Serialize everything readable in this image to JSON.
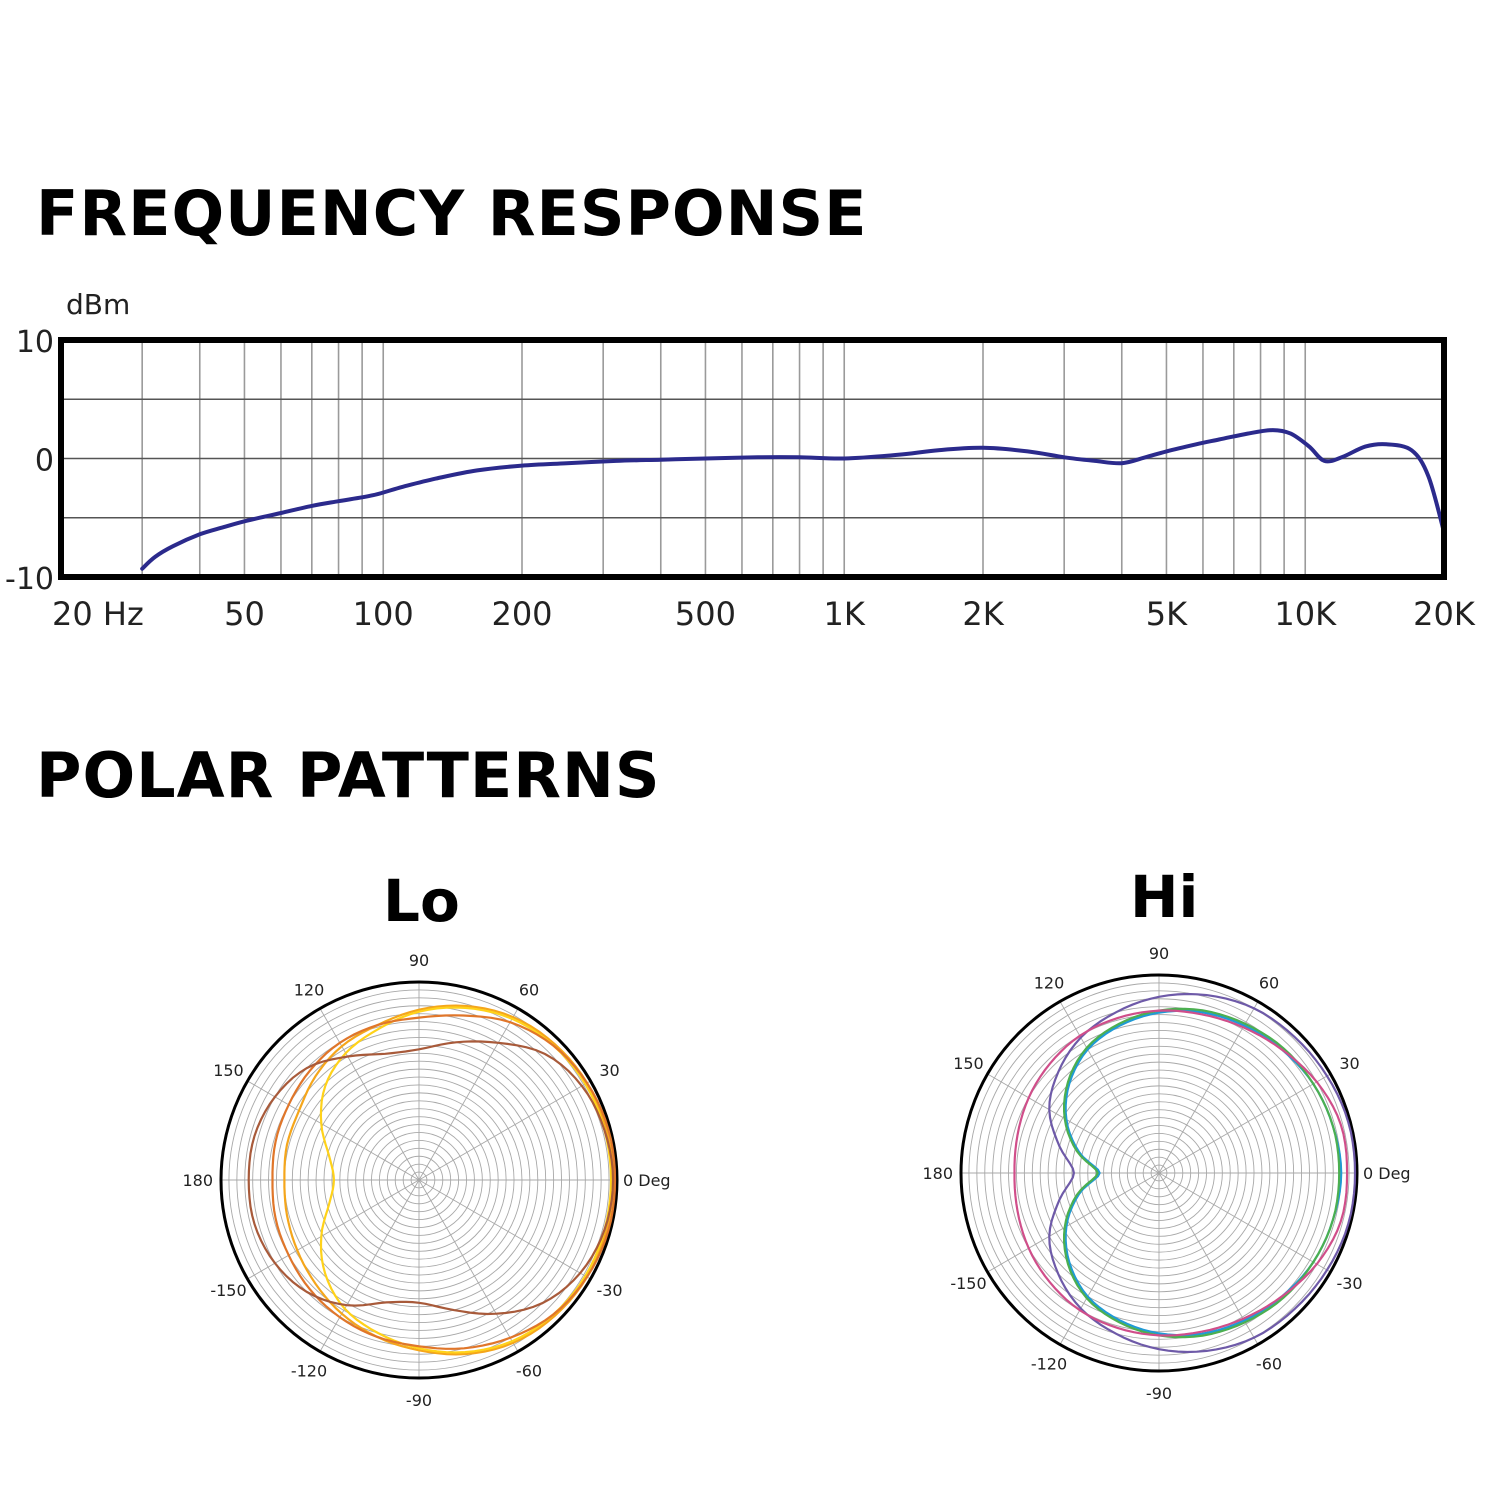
{
  "headings": {
    "frequency": "FREQUENCY RESPONSE",
    "polar": "POLAR PATTERNS"
  },
  "chart_data": [
    {
      "type": "line",
      "ylabel": "dBm",
      "x_scale": "log",
      "xlim": [
        20,
        20000
      ],
      "ylim": [
        -10,
        10
      ],
      "y_ticks": [
        10,
        0,
        -10
      ],
      "y_tick_labels": [
        "10",
        "0",
        "-10"
      ],
      "x_ticks": [
        20,
        50,
        100,
        200,
        500,
        1000,
        2000,
        5000,
        10000,
        20000
      ],
      "x_tick_labels": [
        "20  Hz",
        "50",
        "100",
        "200",
        "500",
        "1K",
        "2K",
        "5K",
        "10K",
        "20K"
      ],
      "grid": true,
      "color": "#2b2a8c",
      "series": [
        {
          "x": [
            30,
            32,
            35,
            40,
            45,
            50,
            60,
            70,
            80,
            95,
            110,
            130,
            160,
            200,
            250,
            320,
            400,
            500,
            650,
            800,
            1000,
            1300,
            1600,
            2000,
            2500,
            3000,
            3500,
            4000,
            4500,
            5000,
            5800,
            6500,
            7500,
            8500,
            9300,
            10200,
            11000,
            12000,
            13500,
            15000,
            17000,
            18500,
            20000
          ],
          "y": [
            -9.3,
            -8.3,
            -7.4,
            -6.4,
            -5.8,
            -5.3,
            -4.6,
            -4.0,
            -3.6,
            -3.1,
            -2.4,
            -1.7,
            -1.0,
            -0.6,
            -0.4,
            -0.2,
            -0.1,
            0.0,
            0.1,
            0.1,
            0.0,
            0.3,
            0.7,
            0.9,
            0.6,
            0.1,
            -0.2,
            -0.4,
            0.1,
            0.6,
            1.2,
            1.6,
            2.1,
            2.4,
            2.1,
            1.0,
            -0.2,
            0.1,
            1.0,
            1.2,
            0.7,
            -1.5,
            -6.2
          ]
        }
      ]
    },
    {
      "type": "polar",
      "title": "Lo",
      "angle_labels": [
        "90",
        "60",
        "30",
        "0 Deg",
        "-30",
        "-60",
        "-90",
        "-120",
        "-150",
        "180",
        "150",
        "120"
      ],
      "series": [
        {
          "color": "#f5a61b",
          "theta": [
            0,
            15,
            30,
            45,
            60,
            75,
            90,
            105,
            120,
            135,
            150,
            165,
            180,
            195,
            210,
            225,
            240,
            255,
            270,
            285,
            300,
            315,
            330,
            345
          ],
          "r": [
            0.98,
            0.98,
            0.98,
            0.97,
            0.95,
            0.91,
            0.86,
            0.81,
            0.78,
            0.74,
            0.7,
            0.69,
            0.68,
            0.69,
            0.71,
            0.74,
            0.78,
            0.82,
            0.86,
            0.91,
            0.95,
            0.97,
            0.98,
            0.98
          ]
        },
        {
          "color": "#ffd21a",
          "theta": [
            0,
            15,
            30,
            45,
            60,
            75,
            90,
            105,
            120,
            135,
            150,
            165,
            180,
            195,
            210,
            225,
            240,
            255,
            270,
            285,
            300,
            315,
            330,
            345
          ],
          "r": [
            0.97,
            0.97,
            0.97,
            0.96,
            0.94,
            0.9,
            0.85,
            0.79,
            0.74,
            0.67,
            0.57,
            0.47,
            0.43,
            0.47,
            0.57,
            0.67,
            0.75,
            0.8,
            0.85,
            0.9,
            0.94,
            0.96,
            0.97,
            0.97
          ]
        },
        {
          "color": "#e0762a",
          "theta": [
            0,
            15,
            30,
            45,
            60,
            75,
            90,
            105,
            120,
            135,
            150,
            165,
            180,
            195,
            210,
            225,
            240,
            255,
            270,
            285,
            300,
            315,
            330,
            345
          ],
          "r": [
            0.99,
            0.99,
            0.98,
            0.96,
            0.92,
            0.86,
            0.82,
            0.81,
            0.8,
            0.78,
            0.76,
            0.75,
            0.74,
            0.75,
            0.76,
            0.78,
            0.8,
            0.82,
            0.84,
            0.88,
            0.92,
            0.96,
            0.98,
            0.99
          ]
        },
        {
          "color": "#a85a3a",
          "theta": [
            0,
            15,
            30,
            45,
            60,
            75,
            90,
            105,
            120,
            135,
            150,
            165,
            180,
            195,
            210,
            225,
            240,
            255,
            270,
            285,
            300,
            315,
            330,
            345
          ],
          "r": [
            0.98,
            0.97,
            0.95,
            0.9,
            0.8,
            0.72,
            0.66,
            0.66,
            0.72,
            0.8,
            0.84,
            0.86,
            0.86,
            0.86,
            0.84,
            0.8,
            0.73,
            0.64,
            0.62,
            0.68,
            0.78,
            0.88,
            0.94,
            0.97
          ]
        }
      ]
    },
    {
      "type": "polar",
      "title": "Hi",
      "angle_labels": [
        "90",
        "60",
        "30",
        "0 Deg",
        "-30",
        "-60",
        "-90",
        "-120",
        "-150",
        "180",
        "150",
        "120"
      ],
      "series": [
        {
          "color": "#1f9ad6",
          "theta": [
            0,
            15,
            30,
            45,
            60,
            75,
            90,
            105,
            120,
            135,
            150,
            165,
            180,
            195,
            210,
            225,
            240,
            255,
            270,
            285,
            300,
            315,
            330,
            345
          ],
          "r": [
            0.92,
            0.91,
            0.9,
            0.88,
            0.86,
            0.84,
            0.81,
            0.77,
            0.72,
            0.64,
            0.54,
            0.42,
            0.3,
            0.42,
            0.54,
            0.64,
            0.72,
            0.77,
            0.81,
            0.84,
            0.86,
            0.88,
            0.9,
            0.91
          ]
        },
        {
          "color": "#4caf50",
          "theta": [
            0,
            15,
            30,
            45,
            60,
            75,
            90,
            105,
            120,
            135,
            150,
            165,
            180,
            195,
            210,
            225,
            240,
            255,
            270,
            285,
            300,
            315,
            330,
            345
          ],
          "r": [
            0.91,
            0.91,
            0.9,
            0.89,
            0.87,
            0.85,
            0.82,
            0.78,
            0.73,
            0.65,
            0.55,
            0.43,
            0.31,
            0.43,
            0.55,
            0.65,
            0.73,
            0.78,
            0.82,
            0.85,
            0.87,
            0.89,
            0.9,
            0.91
          ]
        },
        {
          "color": "#6e5aa8",
          "theta": [
            0,
            15,
            30,
            45,
            60,
            75,
            90,
            105,
            120,
            135,
            150,
            165,
            180,
            195,
            210,
            225,
            240,
            255,
            270,
            285,
            300,
            315,
            330,
            345
          ],
          "r": [
            0.99,
            0.99,
            0.98,
            0.97,
            0.96,
            0.93,
            0.89,
            0.84,
            0.79,
            0.72,
            0.64,
            0.52,
            0.43,
            0.52,
            0.64,
            0.72,
            0.79,
            0.84,
            0.89,
            0.93,
            0.96,
            0.97,
            0.98,
            0.99
          ]
        },
        {
          "color": "#d04e8a",
          "theta": [
            0,
            15,
            30,
            45,
            60,
            75,
            90,
            105,
            120,
            135,
            150,
            165,
            180,
            195,
            210,
            225,
            240,
            255,
            270,
            285,
            300,
            315,
            330,
            345
          ],
          "r": [
            0.95,
            0.95,
            0.92,
            0.88,
            0.85,
            0.83,
            0.82,
            0.81,
            0.8,
            0.78,
            0.76,
            0.74,
            0.73,
            0.74,
            0.76,
            0.78,
            0.8,
            0.81,
            0.82,
            0.83,
            0.85,
            0.88,
            0.92,
            0.95
          ]
        }
      ]
    }
  ]
}
